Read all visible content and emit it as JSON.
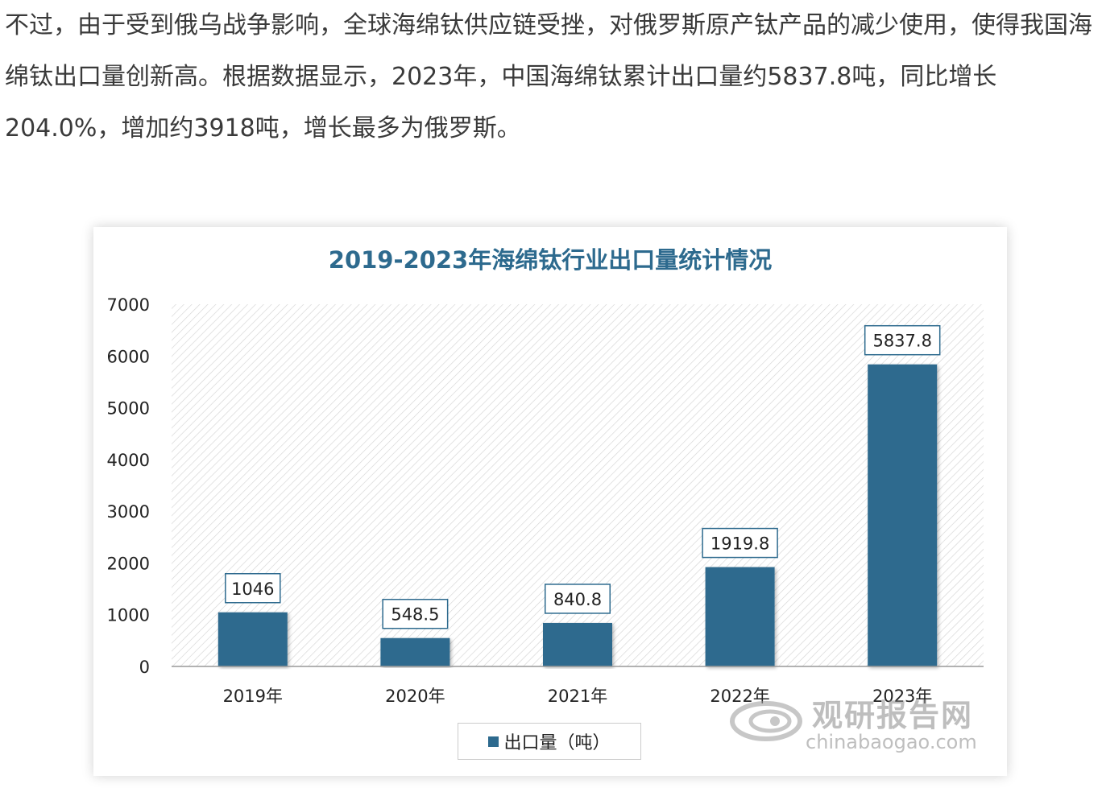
{
  "article": {
    "paragraph": "不过，由于受到俄乌战争影响，全球海绵钛供应链受挫，对俄罗斯原产钛产品的减少使用，使得我国海绵钛出口量创新高。根据数据显示，2023年，中国海绵钛累计出口量约5837.8吨，同比增长204.0%，增加约3918吨，增长最多为俄罗斯。"
  },
  "colors": {
    "bar": "#2d6a8e",
    "title": "#2d6a8e",
    "label_border": "#2d6a8e"
  },
  "watermark": {
    "brand_cn": "观研报告网",
    "brand_en": "chinabaogao.com",
    "logo_icon": "swirl-logo-icon"
  },
  "chart_data": {
    "type": "bar",
    "title": "2019-2023年海绵钛行业出口量统计情况",
    "categories": [
      "2019年",
      "2020年",
      "2021年",
      "2022年",
      "2023年"
    ],
    "series": [
      {
        "name": "出口量（吨）",
        "values": [
          1046,
          548.5,
          840.8,
          1919.8,
          5837.8
        ],
        "labels": [
          "1046",
          "548.5",
          "840.8",
          "1919.8",
          "5837.8"
        ]
      }
    ],
    "ylim": [
      0,
      7000
    ],
    "yticks": [
      "0",
      "1000",
      "2000",
      "3000",
      "4000",
      "5000",
      "6000",
      "7000"
    ],
    "xlabel": "",
    "ylabel": "",
    "legend_position": "bottom",
    "grid": false
  }
}
